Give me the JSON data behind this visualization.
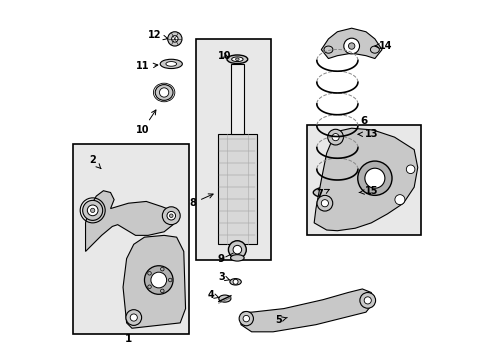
{
  "bg_color": "#ffffff",
  "line_color": "#000000",
  "gray_box": "#e8e8e8",
  "gray_part": "#c8c8c8",
  "gray_dark": "#b0b0b0",
  "gray_light": "#d8d8d8"
}
